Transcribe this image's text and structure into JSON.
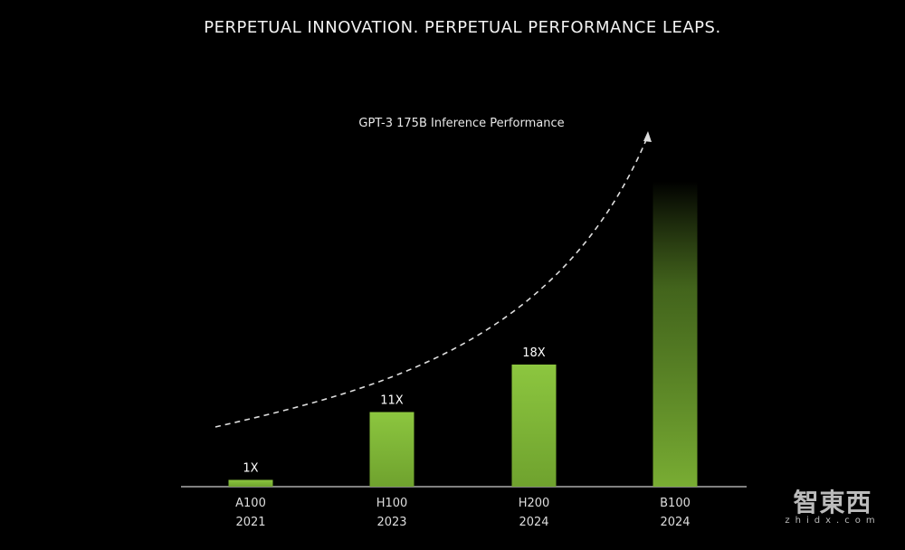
{
  "title": "PERPETUAL INNOVATION. PERPETUAL PERFORMANCE LEAPS.",
  "watermark": {
    "cn": "智東西",
    "en": "zhidx.com"
  },
  "chart_data": {
    "type": "bar",
    "title": "GPT-3 175B Inference Performance",
    "xlabel": "",
    "ylabel": "",
    "categories": [
      "A100",
      "H100",
      "H200",
      "B100"
    ],
    "years": [
      "2021",
      "2023",
      "2024",
      "2024"
    ],
    "values": [
      1,
      11,
      18,
      45
    ],
    "labels": [
      "1X",
      "11X",
      "18X",
      ""
    ],
    "ylim": [
      0,
      46
    ],
    "grid": false,
    "bar_color": "#7ab536",
    "annotation": "dashed exponential trend arrow"
  }
}
